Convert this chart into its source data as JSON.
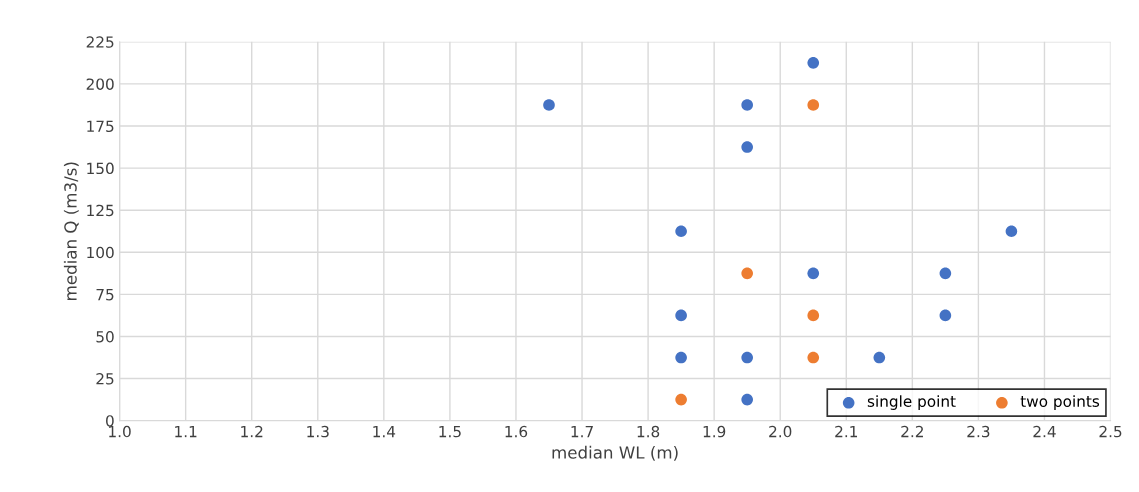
{
  "chart_data": {
    "type": "scatter",
    "xlabel": "median WL (m)",
    "ylabel": "median Q (m3/s)",
    "series": [
      {
        "name": "single point",
        "color": "#4472c4",
        "x": [
          1.65,
          1.95,
          1.95,
          2.05,
          1.85,
          2.35,
          2.05,
          2.25,
          1.85,
          2.25,
          1.85,
          1.95,
          2.15,
          1.95
        ],
        "values": [
          187.5,
          187.5,
          162.5,
          212.5,
          112.5,
          112.5,
          87.5,
          87.5,
          62.5,
          62.5,
          37.5,
          37.5,
          37.5,
          12.5
        ]
      },
      {
        "name": "two points",
        "color": "#ed7d31",
        "x": [
          1.85,
          1.95,
          2.05,
          2.05,
          2.05
        ],
        "values": [
          12.5,
          87.5,
          187.5,
          62.5,
          37.5
        ]
      }
    ],
    "xlim": [
      1.0,
      2.5
    ],
    "xticks": [
      {
        "value": 1.0,
        "label": "1.0"
      },
      1.1,
      1.2,
      1.3,
      1.4,
      1.5,
      1.6,
      1.7,
      1.8,
      1.9,
      {
        "value": 2.0,
        "label": "2.0"
      },
      2.1,
      2.2,
      2.3,
      2.4,
      2.5
    ],
    "ylim": [
      0,
      225
    ],
    "yticks": [
      0,
      25,
      50,
      75,
      100,
      125,
      150,
      175,
      200,
      225
    ],
    "grid": true,
    "legend": "bottom right",
    "marker": "circle"
  }
}
